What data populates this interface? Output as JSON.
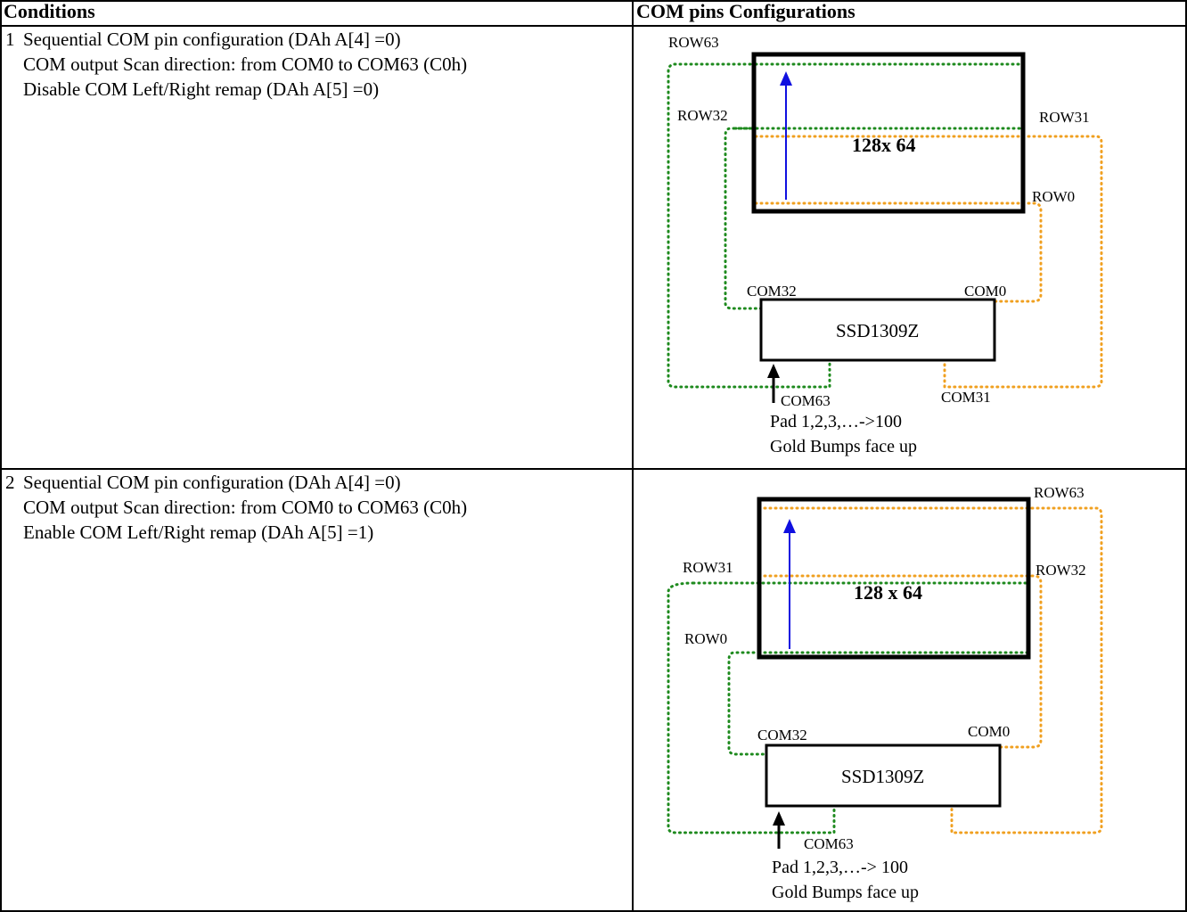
{
  "header": {
    "conditions": "Conditions",
    "com_pins": "COM pins Configurations"
  },
  "rows": [
    {
      "number": "1",
      "conditions": [
        "Sequential COM pin configuration (DAh A[4] =0)",
        "COM output Scan direction: from COM0 to COM63 (C0h)",
        "Disable COM Left/Right remap (DAh A[5] =0)"
      ],
      "diagram": {
        "panel_label": "128x 64",
        "chip_label": "SSD1309Z",
        "row_labels": [
          "ROW63",
          "ROW32",
          "ROW31",
          "ROW0"
        ],
        "com_labels": [
          "COM32",
          "COM0",
          "COM63",
          "COM31"
        ],
        "pad_text": "Pad 1,2,3,…->100",
        "bump_text": "Gold Bumps face up"
      }
    },
    {
      "number": "2",
      "conditions": [
        "Sequential COM pin configuration (DAh A[4] =0)",
        "COM output Scan direction: from COM0 to COM63 (C0h)",
        "Enable COM Left/Right remap (DAh A[5] =1)"
      ],
      "diagram": {
        "panel_label": "128 x 64",
        "chip_label": "SSD1309Z",
        "row_labels": [
          "ROW63",
          "ROW31",
          "ROW32",
          "ROW0"
        ],
        "com_labels": [
          "COM32",
          "COM0",
          "COM63"
        ],
        "pad_text": "Pad 1,2,3,…-> 100",
        "bump_text": "Gold Bumps face up"
      }
    }
  ],
  "colors": {
    "green": "#1e8a1e",
    "orange": "#f0a020",
    "blue": "#1010e0",
    "border": "#000000"
  }
}
